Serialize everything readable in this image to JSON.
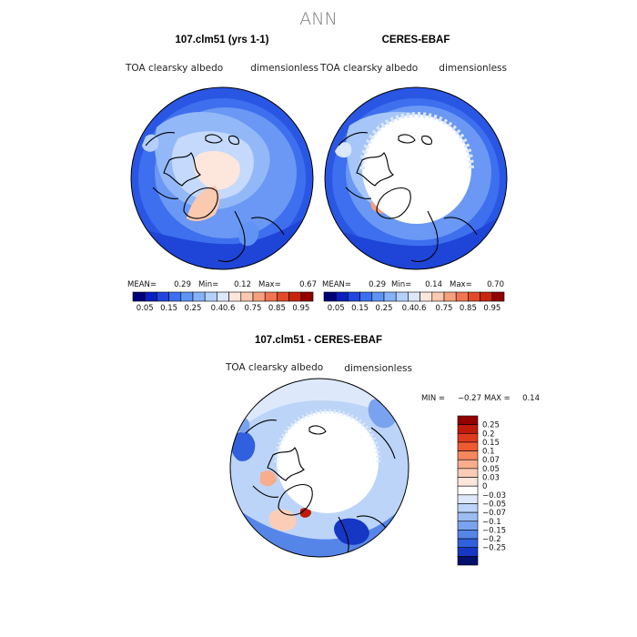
{
  "figure": {
    "title": "ANN"
  },
  "chart_data": [
    {
      "type": "heatmap",
      "title": "107.clm51 (yrs 1-1)",
      "left_label": "TOA clearsky albedo",
      "right_label": "dimensionless",
      "stats": {
        "mean_label": "MEAN=",
        "mean": "0.29",
        "min_label": "Min=",
        "min": "0.12",
        "max_label": "Max=",
        "max": "0.67"
      },
      "colorbar": {
        "orientation": "horizontal",
        "colors": [
          "#00007a",
          "#0a1fbf",
          "#2146e0",
          "#3b6ff0",
          "#5f94f5",
          "#86b2f8",
          "#b4d0fa",
          "#dbe8fb",
          "#fde6dc",
          "#fbc8b0",
          "#f7a07f",
          "#f07550",
          "#e34a2a",
          "#c8250f",
          "#930000"
        ],
        "labels": [
          "0.05",
          "0.15",
          "0.25",
          "0.4",
          "0.6",
          "0.75",
          "0.85",
          "0.95"
        ]
      },
      "map": {
        "projection": "polar-stereographic-north",
        "missing_polar_cap": false
      }
    },
    {
      "type": "heatmap",
      "title": "CERES-EBAF",
      "left_label": "TOA clearsky albedo",
      "right_label": "dimensionless",
      "stats": {
        "mean_label": "MEAN=",
        "mean": "0.29",
        "min_label": "Min=",
        "min": "0.14",
        "max_label": "Max=",
        "max": "0.70"
      },
      "colorbar": {
        "orientation": "horizontal",
        "colors": [
          "#00007a",
          "#0a1fbf",
          "#2146e0",
          "#3b6ff0",
          "#5f94f5",
          "#86b2f8",
          "#b4d0fa",
          "#dbe8fb",
          "#fde6dc",
          "#fbc8b0",
          "#f7a07f",
          "#f07550",
          "#e34a2a",
          "#c8250f",
          "#930000"
        ],
        "labels": [
          "0.05",
          "0.15",
          "0.25",
          "0.4",
          "0.6",
          "0.75",
          "0.85",
          "0.95"
        ]
      },
      "map": {
        "projection": "polar-stereographic-north",
        "missing_polar_cap": true
      }
    },
    {
      "type": "heatmap",
      "title": "107.clm51 - CERES-EBAF",
      "left_label": "TOA clearsky albedo",
      "right_label": "dimensionless",
      "stats": {
        "min_label": "MIN =",
        "min": "−0.27",
        "max_label": "MAX =",
        "max": "0.14"
      },
      "colorbar": {
        "orientation": "vertical",
        "colors": [
          "#930000",
          "#bf1a0a",
          "#de3a1e",
          "#f05a32",
          "#f5875e",
          "#f8ad8d",
          "#fbcdb7",
          "#fde7dd",
          "#ffffff",
          "#dde9fb",
          "#bcd4f8",
          "#9cbdf4",
          "#7aa3ef",
          "#5685e8",
          "#3060dd",
          "#1636c4",
          "#03106e"
        ],
        "labels": [
          "0.25",
          "0.2",
          "0.15",
          "0.1",
          "0.07",
          "0.05",
          "0.03",
          "0",
          "−0.03",
          "−0.05",
          "−0.07",
          "−0.1",
          "−0.15",
          "−0.2",
          "−0.25"
        ]
      },
      "map": {
        "projection": "polar-stereographic-north",
        "missing_polar_cap": true
      }
    }
  ]
}
